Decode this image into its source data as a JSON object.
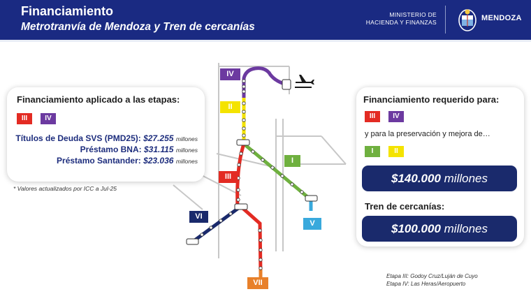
{
  "header": {
    "title": "Financiamiento",
    "subtitle": "Metrotranvía de Mendoza y Tren de cercanías",
    "ministry_line1": "MINISTERIO DE",
    "ministry_line2": "HACIENDA Y FINANZAS",
    "brand": "MENDOZA",
    "colors": {
      "background": "#1a2a82"
    }
  },
  "left_card": {
    "heading": "Financiamiento aplicado a las etapas:",
    "stages": [
      "III",
      "IV"
    ],
    "items": [
      {
        "label": "Títulos de Deuda SVS (PMD25):",
        "amount": "$27.255",
        "unit": "millones"
      },
      {
        "label": "Préstamo BNA:",
        "amount": "$31.115",
        "unit": "millones"
      },
      {
        "label": "Préstamo Santander:",
        "amount": "$23.036",
        "unit": "millones"
      }
    ],
    "note": "* Valores actualizados por ICC a Jul-25"
  },
  "right_card": {
    "heading": "Financiamiento requerido para:",
    "stages_primary": [
      "III",
      "IV"
    ],
    "preservation_text": "y para la preservación y mejora de…",
    "stages_secondary": [
      "I",
      "II"
    ],
    "total_amount": "$140.000",
    "total_unit": "millones",
    "train_heading": "Tren de cercanías:",
    "train_amount": "$100.000",
    "train_unit": "millones"
  },
  "map": {
    "labels": {
      "IV": "IV",
      "II": "II",
      "I": "I",
      "III": "III",
      "V": "V",
      "VI": "VI",
      "VII": "VII"
    },
    "airport_icon": "airplane-icon",
    "line_colors": {
      "I": "#6fb03f",
      "II": "#f4e300",
      "III": "#e32b23",
      "IV": "#6c3aa0",
      "V": "#39a9dc",
      "VI": "#1a2a6c",
      "VII": "#e8802a"
    }
  },
  "etapa_notes": {
    "line1": "Etapa III: Godoy Cruz/Luján de Cuyo",
    "line2": "Etapa IV: Las Heras/Aeropuerto"
  }
}
